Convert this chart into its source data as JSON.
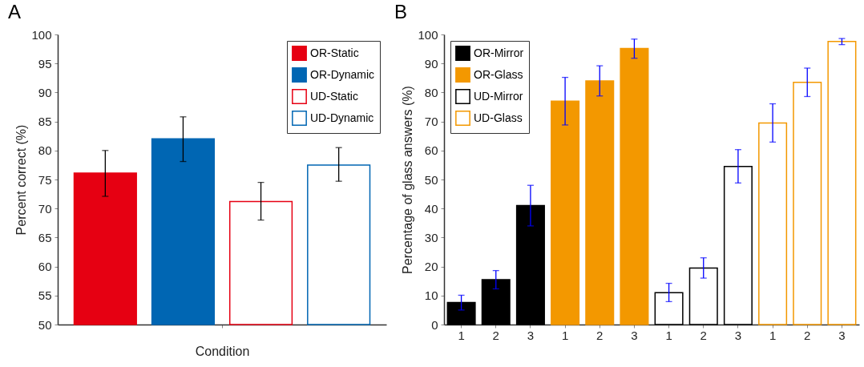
{
  "chart_data": [
    {
      "type": "bar",
      "title": "A",
      "xlabel": "Condition",
      "ylabel": "Percent correct (%)",
      "categories": [
        null
      ],
      "ylim": [
        50,
        100
      ],
      "yticks": [
        50,
        55,
        60,
        65,
        70,
        75,
        80,
        85,
        90,
        95,
        100
      ],
      "legend": "top right",
      "series": [
        {
          "name": "OR-Static",
          "color": "#e60012",
          "values": [
            76.1
          ],
          "errors": [
            [
              72.1,
              80
            ]
          ]
        },
        {
          "name": "OR-Dynamic",
          "color": "#0066b3",
          "values": [
            82
          ],
          "errors": [
            [
              78.1,
              85.8
            ]
          ]
        },
        {
          "name": "UD-Static",
          "color": "#e60012",
          "values": [
            71.2
          ],
          "errors": [
            [
              68,
              74.5
            ]
          ]
        },
        {
          "name": "UD-Dynamic",
          "color": "#0066b3",
          "values": [
            77.5
          ],
          "errors": [
            [
              74.7,
              80.5
            ]
          ]
        }
      ]
    },
    {
      "type": "bar",
      "title": "B",
      "ylabel": "Percentage of glass answers (%)",
      "categories": [
        "1",
        "2",
        "3",
        "1",
        "2",
        "3",
        "1",
        "2",
        "3",
        "1",
        "2",
        "3"
      ],
      "ylim": [
        0,
        100
      ],
      "yticks": [
        0,
        10,
        20,
        30,
        40,
        50,
        60,
        70,
        80,
        90,
        100
      ],
      "legend": "top left",
      "series": [
        {
          "name": "OR-Mirror",
          "color": "#000000",
          "values": [
            7.6,
            15.5,
            41,
            null,
            null,
            null,
            null,
            null,
            null,
            null,
            null,
            null
          ],
          "errors": [
            [
              5,
              10.1
            ],
            [
              12.3,
              18.6
            ],
            [
              34,
              48
            ],
            null,
            null,
            null,
            null,
            null,
            null,
            null,
            null,
            null
          ]
        },
        {
          "name": "OR-Glass",
          "color": "#f39800",
          "values": [
            null,
            null,
            null,
            77,
            84,
            95.2,
            null,
            null,
            null,
            null,
            null,
            null
          ],
          "errors": [
            null,
            null,
            null,
            [
              68.8,
              85.2
            ],
            [
              78.8,
              89.2
            ],
            [
              91.8,
              98.4
            ],
            null,
            null,
            null,
            null,
            null,
            null
          ]
        },
        {
          "name": "UD-Mirror",
          "color": "#000000",
          "values": [
            null,
            null,
            null,
            null,
            null,
            null,
            11,
            19.5,
            54.5,
            null,
            null,
            null
          ],
          "errors": [
            null,
            null,
            null,
            null,
            null,
            null,
            [
              7.9,
              14.2
            ],
            [
              16,
              23
            ],
            [
              48.8,
              60.3
            ],
            null,
            null,
            null
          ]
        },
        {
          "name": "UD-Glass",
          "color": "#f39800",
          "values": [
            null,
            null,
            null,
            null,
            null,
            null,
            null,
            null,
            null,
            69.5,
            83.5,
            97.6
          ],
          "errors": [
            null,
            null,
            null,
            null,
            null,
            null,
            null,
            null,
            null,
            [
              62.9,
              76.1
            ],
            [
              78.6,
              88.4
            ],
            [
              96.5,
              98.6
            ]
          ]
        }
      ]
    }
  ]
}
